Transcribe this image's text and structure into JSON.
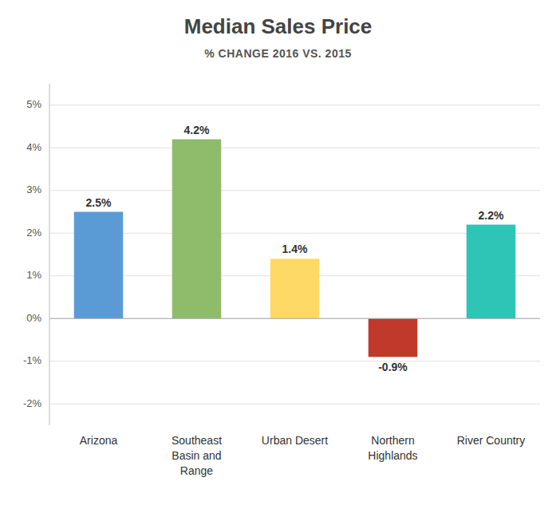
{
  "chart_data": {
    "type": "bar",
    "title": "Median Sales Price",
    "subtitle": "% CHANGE 2016 VS. 2015",
    "categories": [
      "Arizona",
      "Southeast\nBasin and\nRange",
      "Urban Desert",
      "Northern\nHighlands",
      "River Country"
    ],
    "values": [
      2.5,
      4.2,
      1.4,
      -0.9,
      2.2
    ],
    "value_labels": [
      "2.5%",
      "4.2%",
      "1.4%",
      "-0.9%",
      "2.2%"
    ],
    "data_labels": true,
    "colors": [
      "#5b9bd5",
      "#8fbc6a",
      "#ffd966",
      "#c0392b",
      "#2ec4b6"
    ],
    "ylim": [
      -2.5,
      5.5
    ],
    "yticks": [
      {
        "value": -2,
        "label": "-2%"
      },
      {
        "value": -1,
        "label": "-1%"
      },
      {
        "value": 0,
        "label": "0%"
      },
      {
        "value": 1,
        "label": "1%"
      },
      {
        "value": 2,
        "label": "2%"
      },
      {
        "value": 3,
        "label": "3%"
      },
      {
        "value": 4,
        "label": "4%"
      },
      {
        "value": 5,
        "label": "5%"
      }
    ],
    "grid": true
  }
}
